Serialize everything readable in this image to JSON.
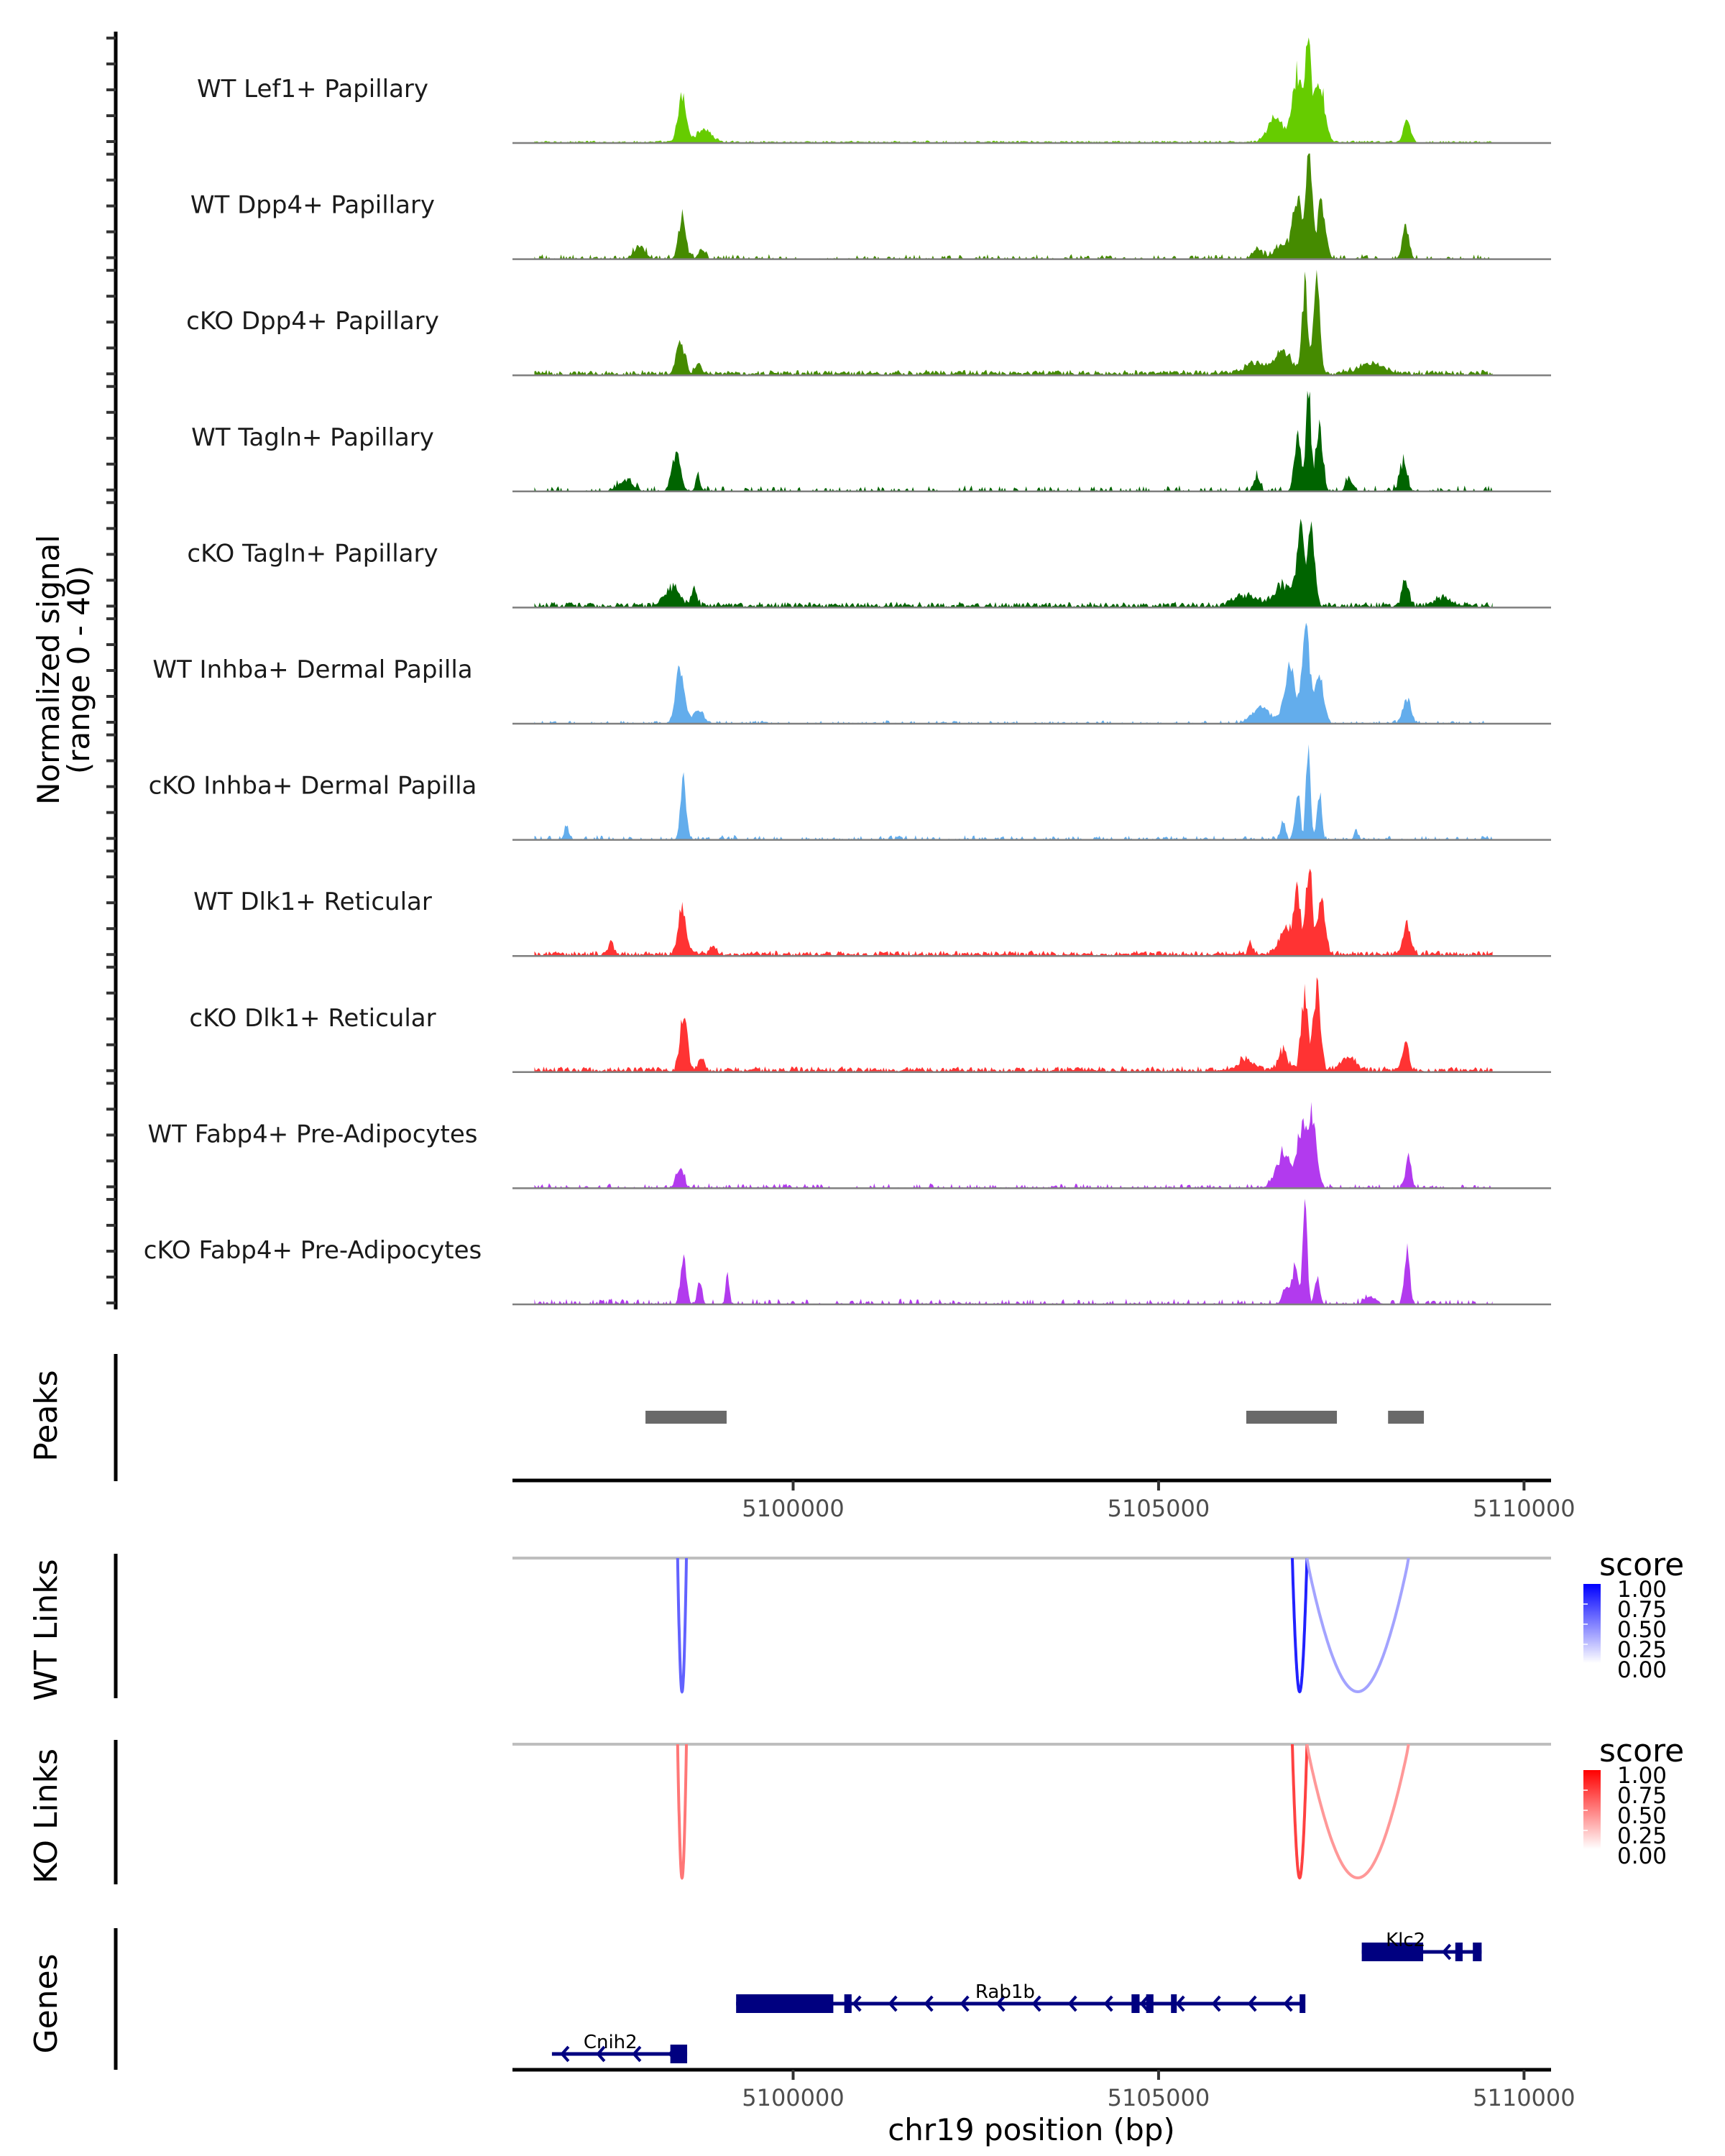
{
  "chart_data": {
    "type": "area",
    "title": "",
    "chromosome": "chr19",
    "xlabel": "chr19 position (bp)",
    "xlim": [
      5096160,
      5110370
    ],
    "x_ticks": [
      5100000,
      5105000,
      5110000
    ],
    "x_tick_labels": [
      "5100000",
      "5105000",
      "5110000"
    ],
    "coverage_panel": {
      "ylabel_line1": "Normalized signal",
      "ylabel_line2": "(range 0 - 40)",
      "ylim": [
        0,
        40
      ],
      "tracks": [
        {
          "name": "WT Lef1+ Papillary",
          "color": "#66CC00",
          "noise": 0.6,
          "sparse": false,
          "peaks": [
            [
              5098480,
              110,
              17
            ],
            [
              5098780,
              200,
              5
            ],
            [
              5106600,
              200,
              10
            ],
            [
              5106900,
              140,
              26
            ],
            [
              5107050,
              70,
              40
            ],
            [
              5107200,
              140,
              24
            ],
            [
              5108400,
              90,
              9
            ]
          ]
        },
        {
          "name": "WT Dpp4+ Papillary",
          "color": "#458B00",
          "noise": 1.2,
          "sparse": true,
          "peaks": [
            [
              5097900,
              150,
              5
            ],
            [
              5098480,
              100,
              16
            ],
            [
              5098750,
              90,
              4
            ],
            [
              5106350,
              120,
              4
            ],
            [
              5106700,
              200,
              6
            ],
            [
              5106900,
              120,
              24
            ],
            [
              5107060,
              80,
              38
            ],
            [
              5107230,
              110,
              22
            ],
            [
              5108380,
              90,
              12
            ]
          ]
        },
        {
          "name": "cKO Dpp4+ Papillary",
          "color": "#458B00",
          "noise": 1.3,
          "sparse": false,
          "peaks": [
            [
              5098460,
              110,
              13
            ],
            [
              5098700,
              90,
              4
            ],
            [
              5106300,
              250,
              4
            ],
            [
              5106700,
              250,
              8
            ],
            [
              5107000,
              80,
              32
            ],
            [
              5107160,
              90,
              34
            ],
            [
              5107900,
              350,
              4
            ]
          ]
        },
        {
          "name": "WT Tagln+ Papillary",
          "color": "#006400",
          "noise": 1.5,
          "sparse": true,
          "peaks": [
            [
              5097700,
              200,
              4
            ],
            [
              5098400,
              120,
              14
            ],
            [
              5098700,
              70,
              5
            ],
            [
              5106350,
              80,
              5
            ],
            [
              5106900,
              90,
              20
            ],
            [
              5107050,
              70,
              38
            ],
            [
              5107200,
              90,
              26
            ],
            [
              5107600,
              80,
              5
            ],
            [
              5108350,
              100,
              10
            ]
          ]
        },
        {
          "name": "cKO Tagln+ Papillary",
          "color": "#006400",
          "noise": 1.4,
          "sparse": false,
          "peaks": [
            [
              5098350,
              200,
              7
            ],
            [
              5098650,
              80,
              6
            ],
            [
              5106200,
              300,
              4
            ],
            [
              5106700,
              220,
              8
            ],
            [
              5106950,
              120,
              28
            ],
            [
              5107100,
              90,
              26
            ],
            [
              5108380,
              90,
              10
            ],
            [
              5108900,
              250,
              3
            ]
          ]
        },
        {
          "name": "WT Inhba+ Dermal Papilla",
          "color": "#63ADEC",
          "noise": 0.8,
          "sparse": true,
          "peaks": [
            [
              5098450,
              120,
              20
            ],
            [
              5098700,
              150,
              5
            ],
            [
              5106400,
              250,
              6
            ],
            [
              5106800,
              160,
              20
            ],
            [
              5107020,
              100,
              36
            ],
            [
              5107200,
              110,
              20
            ],
            [
              5108400,
              110,
              9
            ]
          ]
        },
        {
          "name": "cKO Inhba+ Dermal Papilla",
          "color": "#63ADEC",
          "noise": 1.1,
          "sparse": true,
          "peaks": [
            [
              5096900,
              60,
              6
            ],
            [
              5098500,
              80,
              22
            ],
            [
              5106700,
              60,
              8
            ],
            [
              5106900,
              70,
              18
            ],
            [
              5107050,
              60,
              40
            ],
            [
              5107200,
              60,
              18
            ],
            [
              5107700,
              50,
              4
            ]
          ]
        },
        {
          "name": "WT Dlk1+ Reticular",
          "color": "#FF3333",
          "noise": 1.3,
          "sparse": false,
          "peaks": [
            [
              5097500,
              60,
              5
            ],
            [
              5098480,
              110,
              17
            ],
            [
              5098900,
              90,
              3
            ],
            [
              5106250,
              60,
              5
            ],
            [
              5106750,
              180,
              10
            ],
            [
              5106900,
              90,
              22
            ],
            [
              5107060,
              80,
              38
            ],
            [
              5107230,
              100,
              22
            ],
            [
              5108400,
              100,
              12
            ]
          ]
        },
        {
          "name": "cKO Dlk1+ Reticular",
          "color": "#FF3333",
          "noise": 1.4,
          "sparse": false,
          "peaks": [
            [
              5098500,
              100,
              20
            ],
            [
              5098740,
              80,
              5
            ],
            [
              5106200,
              250,
              4
            ],
            [
              5106700,
              120,
              8
            ],
            [
              5107000,
              100,
              28
            ],
            [
              5107170,
              90,
              32
            ],
            [
              5107600,
              200,
              5
            ],
            [
              5108380,
              90,
              9
            ]
          ]
        },
        {
          "name": "WT Fabp4+ Pre-Adipocytes",
          "color": "#B23AEE",
          "noise": 1.2,
          "sparse": true,
          "peaks": [
            [
              5098450,
              100,
              8
            ],
            [
              5106700,
              200,
              12
            ],
            [
              5106950,
              140,
              20
            ],
            [
              5107100,
              120,
              24
            ],
            [
              5108420,
              70,
              13
            ]
          ]
        },
        {
          "name": "cKO Fabp4+ Pre-Adipocytes",
          "color": "#B23AEE",
          "noise": 1.4,
          "sparse": true,
          "peaks": [
            [
              5098500,
              80,
              17
            ],
            [
              5098720,
              60,
              10
            ],
            [
              5099100,
              50,
              10
            ],
            [
              5106750,
              100,
              8
            ],
            [
              5106870,
              70,
              16
            ],
            [
              5107000,
              60,
              40
            ],
            [
              5107170,
              70,
              10
            ],
            [
              5108400,
              70,
              22
            ],
            [
              5107900,
              150,
              3
            ]
          ]
        }
      ]
    },
    "peaks_panel": {
      "label": "Peaks",
      "color": "#696969",
      "regions": [
        [
          5097980,
          5099090
        ],
        [
          5106200,
          5107440
        ],
        [
          5108140,
          5108630
        ]
      ]
    },
    "link_panels": [
      {
        "label": "WT Links",
        "legend_title": "score",
        "color_low": "#FFFFFF",
        "color_high": "#0000FF",
        "links": [
          {
            "start": 5098420,
            "end": 5098540,
            "score": 0.55
          },
          {
            "start": 5106830,
            "end": 5107030,
            "score": 0.85
          },
          {
            "start": 5107030,
            "end": 5108420,
            "score": 0.25
          }
        ]
      },
      {
        "label": "KO Links",
        "legend_title": "score",
        "color_low": "#FFFFFF",
        "color_high": "#FF0000",
        "links": [
          {
            "start": 5098420,
            "end": 5098540,
            "score": 0.45
          },
          {
            "start": 5106830,
            "end": 5107030,
            "score": 0.7
          },
          {
            "start": 5107030,
            "end": 5108420,
            "score": 0.3
          }
        ]
      }
    ],
    "legend_ticks": [
      "1.00",
      "0.75",
      "0.50",
      "0.25",
      "0.00"
    ],
    "genes_panel": {
      "label": "Genes",
      "color": "#000080",
      "genes": [
        {
          "name": "Klc2",
          "strand": "-",
          "start": 5107780,
          "end": 5109420,
          "exons": [
            [
              5107780,
              5108620
            ],
            [
              5109060,
              5109160
            ],
            [
              5109300,
              5109420
            ]
          ]
        },
        {
          "name": "Rab1b",
          "strand": "-",
          "start": 5099220,
          "end": 5106960,
          "exons": [
            [
              5099220,
              5100550
            ],
            [
              5100700,
              5100800
            ],
            [
              5104630,
              5104740
            ],
            [
              5104830,
              5104930
            ],
            [
              5105170,
              5105240
            ],
            [
              5106930,
              5106960
            ]
          ]
        },
        {
          "name": "Cnih2",
          "strand": "-",
          "start": 5096700,
          "end": 5098550,
          "exons": [
            [
              5098320,
              5098550
            ]
          ]
        }
      ]
    }
  }
}
